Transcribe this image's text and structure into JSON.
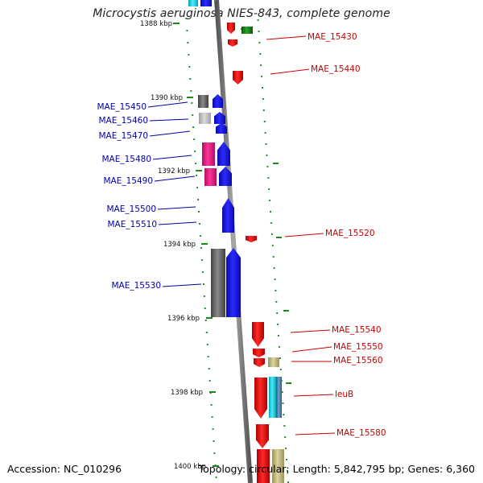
{
  "title": "Microcystis aeruginosa NIES-843, complete genome",
  "accession": "Accession: NC_010296",
  "summary": "Topology: circular; Length: 5,842,795 bp; Genes: 6,360",
  "colors": {
    "forward": "#1a1aff",
    "reverse": "#ff1a1a",
    "pink": "#ee2288",
    "gray": "#707070",
    "lightgray": "#c0c0c0",
    "olive": "#c8c088",
    "cyan": "#22ddee",
    "steel": "#4a86b0",
    "green": "#1a8a1a",
    "backbone": "#888888"
  },
  "ruler": {
    "unit": "kbp",
    "ticks": [
      "1388 kbp",
      "1390 kbp",
      "1392 kbp",
      "1394 kbp",
      "1396 kbp",
      "1398 kbp",
      "1400 kbp"
    ]
  },
  "left_labels": [
    "MAE_15450",
    "MAE_15460",
    "MAE_15470",
    "MAE_15480",
    "MAE_15490",
    "MAE_15500",
    "MAE_15510",
    "MAE_15530"
  ],
  "right_labels": [
    "MAE_15430",
    "MAE_15440",
    "MAE_15520",
    "MAE_15540",
    "MAE_15550",
    "MAE_15560",
    "leuB",
    "MAE_15580"
  ]
}
